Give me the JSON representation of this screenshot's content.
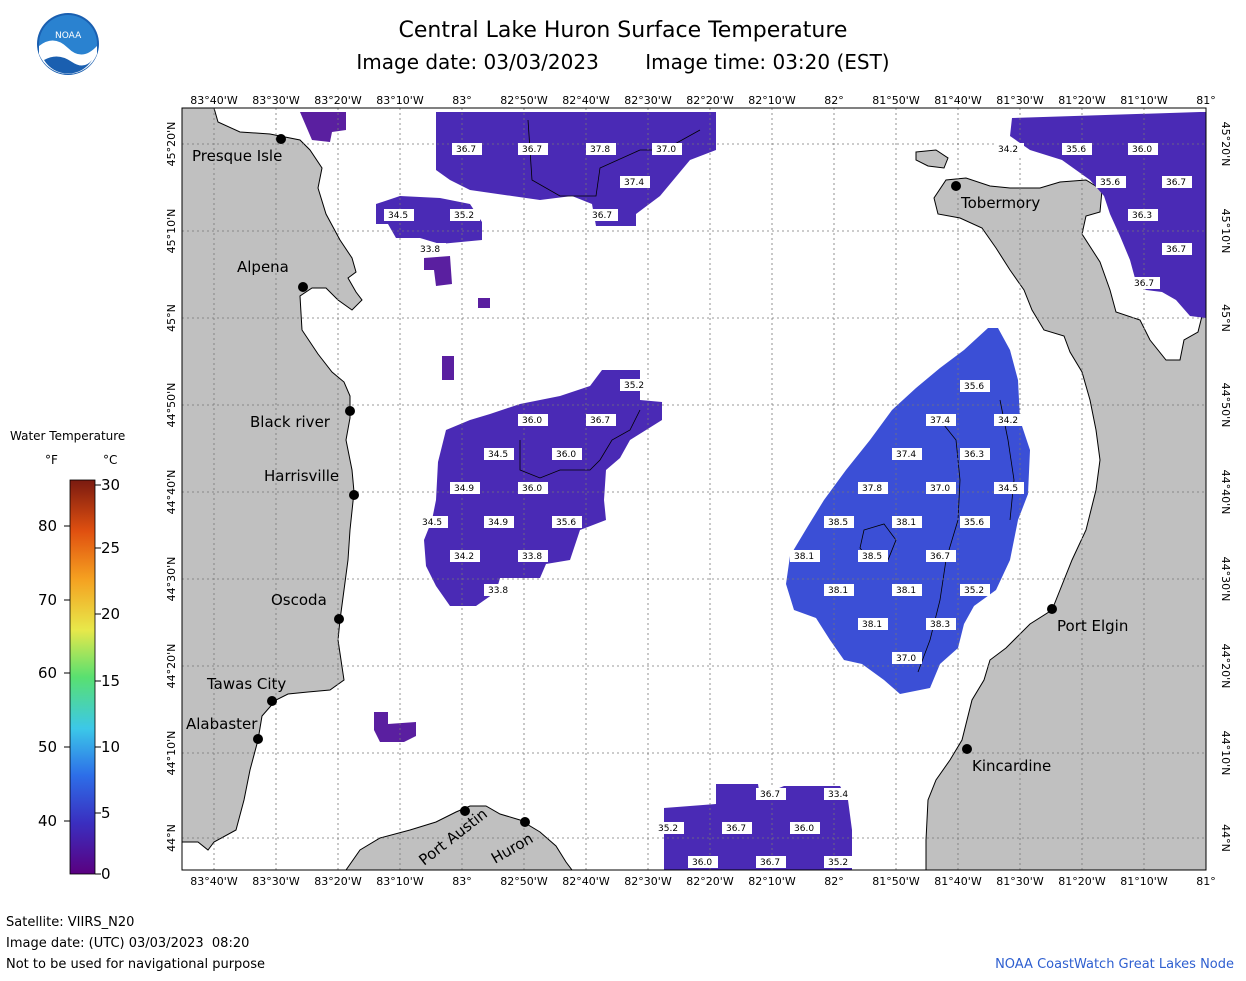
{
  "header": {
    "title": "Central Lake Huron Surface Temperature",
    "image_date": "Image date: 03/03/2023",
    "image_time": "Image time: 03:20 (EST)"
  },
  "axes": {
    "lon_labels": [
      "83°40'W",
      "83°30'W",
      "83°20'W",
      "83°10'W",
      "83°",
      "82°50'W",
      "82°40'W",
      "82°30'W",
      "82°20'W",
      "82°10'W",
      "82°",
      "81°50'W",
      "81°40'W",
      "81°30'W",
      "81°20'W",
      "81°10'W",
      "81°"
    ],
    "lat_labels": [
      "45°20'N",
      "45°10'N",
      "45°N",
      "44°50'N",
      "44°40'N",
      "44°30'N",
      "44°20'N",
      "44°10'N",
      "44°N"
    ]
  },
  "places": {
    "presque_isle": "Presque Isle",
    "alpena": "Alpena",
    "black_river": "Black river",
    "harrisville": "Harrisville",
    "oscoda": "Oscoda",
    "tawas_city": "Tawas City",
    "alabaster": "Alabaster",
    "port_austin": "Port Austin",
    "huron": "Huron",
    "tobermory": "Tobermory",
    "port_elgin": "Port Elgin",
    "kincardine": "Kincardine"
  },
  "legend": {
    "title": "Water Temperature",
    "unit_f": "°F",
    "unit_c": "°C",
    "f_ticks": [
      "80",
      "70",
      "60",
      "50",
      "40"
    ],
    "c_ticks": [
      "30",
      "25",
      "20",
      "15",
      "10",
      "5",
      "0"
    ]
  },
  "temperatures": {
    "t1": "36.7",
    "t2": "36.7",
    "t3": "37.8",
    "t4": "37.0",
    "t5": "37.4",
    "t6": "36.7",
    "t7": "34.5",
    "t8": "35.2",
    "t9": "33.8",
    "t10": "34.2",
    "t11": "35.6",
    "t12": "36.0",
    "t13": "35.6",
    "t14": "36.7",
    "t15": "36.3",
    "t16": "36.7",
    "t17": "36.7",
    "t18": "35.2",
    "t19": "36.0",
    "t20": "36.7",
    "t21": "34.5",
    "t22": "36.0",
    "t23": "34.9",
    "t24": "36.0",
    "t25": "34.5",
    "t26": "34.9",
    "t27": "35.6",
    "t28": "34.2",
    "t29": "33.8",
    "t30": "33.8",
    "t31": "35.6",
    "t32": "37.4",
    "t33": "34.2",
    "t34": "37.4",
    "t35": "36.3",
    "t36": "37.8",
    "t37": "37.0",
    "t38": "34.5",
    "t39": "38.5",
    "t40": "38.1",
    "t41": "35.6",
    "t42": "38.1",
    "t43": "38.5",
    "t44": "36.7",
    "t45": "38.1",
    "t46": "38.1",
    "t47": "35.2",
    "t48": "38.1",
    "t49": "38.3",
    "t50": "37.0",
    "t51": "36.7",
    "t52": "33.4",
    "t53": "35.2",
    "t54": "36.7",
    "t55": "36.0",
    "t56": "36.0",
    "t57": "36.7",
    "t58": "35.2"
  },
  "footer": {
    "satellite": "Satellite: VIIRS_N20",
    "utc_date": "Image date: (UTC) 03/03/2023  08:20",
    "disclaimer": "Not to be used for navigational purpose",
    "credit": "NOAA CoastWatch Great Lakes Node"
  },
  "colors": {
    "land": "#c0c0c0",
    "water_cold": "#5a1fa0",
    "water_warm": "#3b4fd6",
    "credit_blue": "#2e5fd0"
  }
}
